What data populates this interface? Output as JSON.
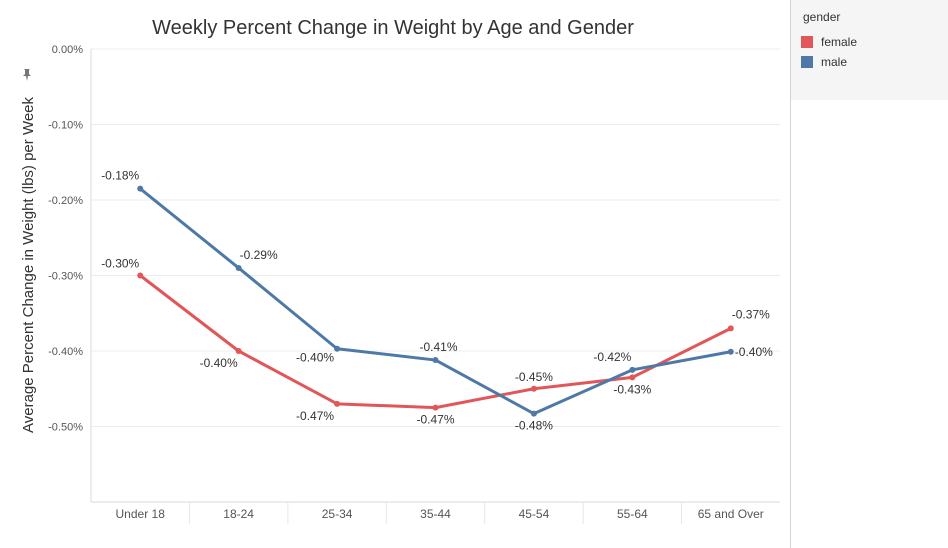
{
  "chart_data": {
    "type": "line",
    "title": "Weekly Percent Change in Weight by Age and Gender",
    "ylabel": "Average Percent Change in Weight (lbs) per Week",
    "xlabel": "",
    "categories": [
      "Under 18",
      "18-24",
      "25-34",
      "35-44",
      "45-54",
      "55-64",
      "65 and Over"
    ],
    "ylim": [
      -0.6,
      0.0
    ],
    "yticks": [
      0.0,
      -0.1,
      -0.2,
      -0.3,
      -0.4,
      -0.5
    ],
    "ytick_labels": [
      "0.00%",
      "-0.10%",
      "-0.20%",
      "-0.30%",
      "-0.40%",
      "-0.50%"
    ],
    "grid": true,
    "legend_position": "top-right",
    "series": [
      {
        "name": "female",
        "color": "#e15759",
        "values": [
          -0.3,
          -0.4,
          -0.47,
          -0.475,
          -0.45,
          -0.435,
          -0.37
        ],
        "labels": [
          "-0.30%",
          "-0.40%",
          "-0.47%",
          "-0.47%",
          "-0.45%",
          "-0.43%",
          "-0.37%"
        ]
      },
      {
        "name": "male",
        "color": "#4e79a7",
        "values": [
          -0.185,
          -0.29,
          -0.397,
          -0.412,
          -0.483,
          -0.425,
          -0.401
        ],
        "labels": [
          "-0.18%",
          "-0.29%",
          "-0.40%",
          "-0.41%",
          "-0.48%",
          "-0.42%",
          "-0.40%"
        ]
      }
    ]
  },
  "legend": {
    "title": "gender",
    "items": [
      {
        "label": "female",
        "color": "#e15759"
      },
      {
        "label": "male",
        "color": "#4e79a7"
      }
    ]
  },
  "icons": {
    "pin": "pin-icon"
  }
}
